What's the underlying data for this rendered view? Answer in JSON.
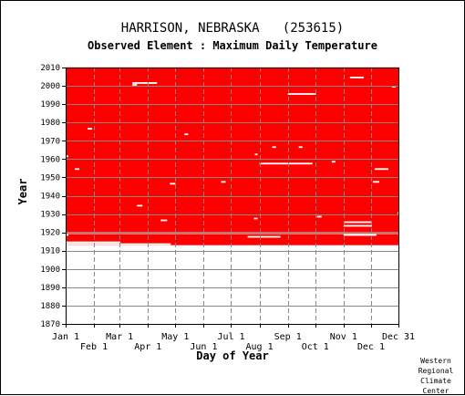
{
  "station_title": "HARRISON, NEBRASKA   (253615)",
  "element_title": "Observed Element : Maximum Daily Temperature",
  "credit": [
    "Western",
    "Regional",
    "Climate",
    "Center"
  ],
  "colors": {
    "data": "#ff0000",
    "missing": "#ffffff",
    "grid": "#888888",
    "axis": "#000000"
  },
  "chart_data": {
    "type": "heatmap",
    "title": "Observed Element : Maximum Daily Temperature",
    "xlabel": "Day of Year",
    "ylabel": "Year",
    "xlim": [
      1,
      365
    ],
    "ylim": [
      1870,
      2010
    ],
    "x_ticks": [
      {
        "day": 1,
        "label": "Jan 1",
        "row": 1
      },
      {
        "day": 32,
        "label": "Feb 1",
        "row": 2
      },
      {
        "day": 60,
        "label": "Mar 1",
        "row": 1
      },
      {
        "day": 91,
        "label": "Apr 1",
        "row": 2
      },
      {
        "day": 121,
        "label": "May 1",
        "row": 1
      },
      {
        "day": 152,
        "label": "Jun 1",
        "row": 2
      },
      {
        "day": 182,
        "label": "Jul 1",
        "row": 1
      },
      {
        "day": 213,
        "label": "Aug 1",
        "row": 2
      },
      {
        "day": 244,
        "label": "Sep 1",
        "row": 1
      },
      {
        "day": 274,
        "label": "Oct 1",
        "row": 2
      },
      {
        "day": 305,
        "label": "Nov 1",
        "row": 1
      },
      {
        "day": 335,
        "label": "Dec 1",
        "row": 2
      },
      {
        "day": 365,
        "label": "Dec 31",
        "row": 1
      }
    ],
    "y_ticks": [
      1870,
      1880,
      1890,
      1900,
      1910,
      1920,
      1930,
      1940,
      1950,
      1960,
      1970,
      1980,
      1990,
      2000,
      2010
    ],
    "record_period": {
      "start_year": 1913,
      "end_year": 2010
    },
    "grid": true,
    "missing_data": [
      {
        "year": 2010,
        "start_day": 1,
        "end_day": 365
      },
      {
        "year": 1913,
        "start_day": 1,
        "end_day": 115
      },
      {
        "year": 1914,
        "start_day": 1,
        "end_day": 60
      },
      {
        "year": 1919,
        "start_day": 1,
        "end_day": 60
      },
      {
        "year": 1919,
        "start_day": 61,
        "end_day": 365
      },
      {
        "year": 1918,
        "start_day": 1,
        "end_day": 3
      },
      {
        "year": 1918,
        "start_day": 305,
        "end_day": 340
      },
      {
        "year": 1923,
        "start_day": 305,
        "end_day": 335
      },
      {
        "year": 1925,
        "start_day": 305,
        "end_day": 335
      },
      {
        "year": 1957,
        "start_day": 213,
        "end_day": 270
      },
      {
        "year": 1995,
        "start_day": 244,
        "end_day": 274
      },
      {
        "year": 2001,
        "start_day": 74,
        "end_day": 100
      },
      {
        "year": 2004,
        "start_day": 312,
        "end_day": 326
      },
      {
        "year": 1954,
        "start_day": 339,
        "end_day": 353
      },
      {
        "year": 1954,
        "start_day": 11,
        "end_day": 15
      },
      {
        "year": 1976,
        "start_day": 25,
        "end_day": 29
      },
      {
        "year": 1961,
        "start_day": 1,
        "end_day": 3
      },
      {
        "year": 1946,
        "start_day": 115,
        "end_day": 120
      },
      {
        "year": 1947,
        "start_day": 171,
        "end_day": 175
      },
      {
        "year": 1947,
        "start_day": 337,
        "end_day": 343
      },
      {
        "year": 1934,
        "start_day": 79,
        "end_day": 84
      },
      {
        "year": 1926,
        "start_day": 105,
        "end_day": 111
      },
      {
        "year": 1927,
        "start_day": 207,
        "end_day": 210
      },
      {
        "year": 1928,
        "start_day": 276,
        "end_day": 280
      },
      {
        "year": 1966,
        "start_day": 227,
        "end_day": 230
      },
      {
        "year": 1966,
        "start_day": 256,
        "end_day": 259
      },
      {
        "year": 1962,
        "start_day": 208,
        "end_day": 210
      },
      {
        "year": 1958,
        "start_day": 292,
        "end_day": 295
      },
      {
        "year": 1999,
        "start_day": 358,
        "end_day": 361
      },
      {
        "year": 2000,
        "start_day": 74,
        "end_day": 78
      },
      {
        "year": 1973,
        "start_day": 131,
        "end_day": 134
      },
      {
        "year": 1930,
        "start_day": 364,
        "end_day": 365
      },
      {
        "year": 1917,
        "start_day": 200,
        "end_day": 235
      }
    ]
  }
}
